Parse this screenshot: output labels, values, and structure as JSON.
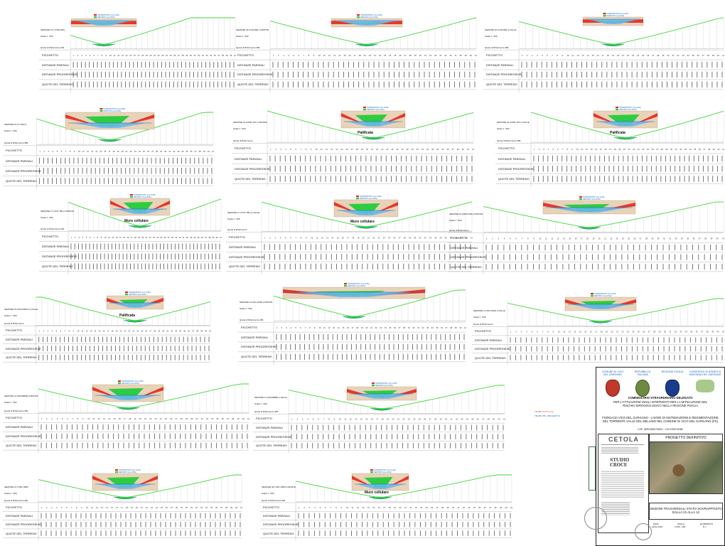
{
  "row_labels": {
    "picchetto": "PICCHETTO",
    "parziali": "DISTANZE PARZIALI",
    "progressive": "DISTANZE PROGRESSIVE",
    "quote": "QUOTE DEL TERRENO"
  },
  "legend": {
    "red_label": "SOPRAPPOSTO (mq 12,89)",
    "blue_label": "DEPOSITO (mq 18,64)"
  },
  "scale_text": "Scala 1 : 500",
  "datum_text": "Quota di Riferimento",
  "sections": [
    {
      "title": "SEZIONE 21 (TYPE-000)",
      "datum": "293",
      "callout": ""
    },
    {
      "title": "SEZIONE 20 CASUSEL A MONTE",
      "datum": "289",
      "callout": ""
    },
    {
      "title": "SEZIONE 20 CASUSEL A VALLE",
      "datum": "289",
      "callout": ""
    },
    {
      "title": "SEZIONE 19 (X-TMCT)",
      "datum": "288",
      "callout": ""
    },
    {
      "title": "SEZIONE 18 (CIMP 107) A MONTE",
      "datum": "",
      "callout": "Palificata"
    },
    {
      "title": "SEZIONE 18 (CIMP 107) A VALLE",
      "datum": "285",
      "callout": "Palificata"
    },
    {
      "title": "SEZIONE 17 (CNV TBL) A MONTE",
      "datum": "281",
      "callout": "Muro cellulare"
    },
    {
      "title": "SEZIONE 17 (CNV TBL) A VALLE",
      "datum": "",
      "callout": "Muro cellulare"
    },
    {
      "title": "SEZIONE 16 (NEW-000) A MONTE",
      "datum": "",
      "callout": ""
    },
    {
      "title": "SEZIONE 15 (WOLPER7) A VALLE",
      "datum": "",
      "callout": "Palificata"
    },
    {
      "title": "SEZIONE 14 (ND-1003) A MONTE",
      "datum": "286",
      "callout": ""
    },
    {
      "title": "SEZIONE 13 (ND-1002) A VALLE",
      "datum": "",
      "callout": ""
    },
    {
      "title": "SEZIONE 12 (WSUBRB) A MONTE",
      "datum": "284",
      "callout": ""
    },
    {
      "title": "SEZIONE 11 (WSUBRB) A VALLE",
      "datum": "284",
      "callout": ""
    },
    {
      "title": "SEZIONE 10 (TNN 1955)",
      "datum": "282",
      "callout": ""
    },
    {
      "title": "SEZIONE 09 (TNN 1955) A MONTE",
      "datum": "281",
      "callout": "Muro cellulare"
    }
  ],
  "title_block": {
    "logos": [
      {
        "name": "COMUNE DI VICO DEL GARGANO"
      },
      {
        "name": "REPUBBLICA ITALIANA"
      },
      {
        "name": "REGIONE PUGLIA"
      },
      {
        "name": "CONSORZIO DI BONIFICA MONTANA DEL GARGANO"
      }
    ],
    "authority": "COMMISSARIO STRAORDINARIO DELEGATO",
    "authority_sub": "PER L'ATTUAZIONE DEGLI INTERVENTI PER LA MITIGAZIONE DEL RISCHIO IDROGEOLOGICO NELLA REGIONE PUGLIA",
    "project": "FG081A/10 VICO DEL GARGANO - LAVORI DI SISTEMAZIONE E REGIMENTAZIONE DEL TORRENTE VALLE DEL MELAINO NEL COMUNE DI VICO DEL GARGANO (FG)",
    "cup": "CUP: J89D15000700001 - CIG 6749074D6E",
    "firm1": "CETOLA",
    "firm2": "STUDIO CROCE",
    "phase": "PROGETTO DEFINITIVO",
    "drawing_title": "SEZIONI TRASVERSALI STATO SOVRAPPOSTO",
    "drawing_range": "DALLA 21 ALLA 12",
    "date_label": "DATA",
    "date_value": "Aprile 2016",
    "scale_label": "SCALA",
    "scale_value": "1:500 - 250",
    "sheet_label": "ELABORATO",
    "sheet_value": "D.7"
  },
  "side_note_1": "TB-000 (CLTT-xs-b)",
  "side_note_2": "TB-000 (TB - PROGETTO)"
}
